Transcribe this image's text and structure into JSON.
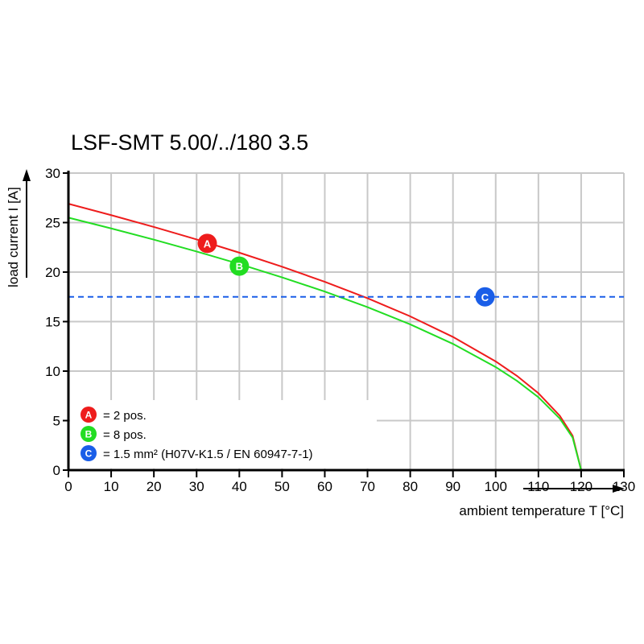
{
  "chart_data": {
    "type": "line",
    "title": "LSF-SMT 5.00/../180 3.5",
    "xlabel": "ambient temperature T [°C]",
    "ylabel": "load current I [A]",
    "xlim": [
      0,
      130
    ],
    "ylim": [
      0,
      30
    ],
    "xticks": [
      0,
      10,
      20,
      30,
      40,
      50,
      60,
      70,
      80,
      90,
      100,
      110,
      120,
      130
    ],
    "yticks": [
      0,
      5,
      10,
      15,
      20,
      25,
      30
    ],
    "grid": true,
    "legend_placement": "bottom-left",
    "series": [
      {
        "key": "A",
        "legend": "= 2 pos.",
        "color": "#ee1c1c",
        "x": [
          0,
          10,
          20,
          30,
          40,
          50,
          60,
          70,
          80,
          90,
          100,
          105,
          110,
          115,
          118,
          120
        ],
        "y": [
          26.9,
          25.75,
          24.56,
          23.3,
          21.96,
          20.54,
          19.02,
          17.36,
          15.53,
          13.45,
          10.98,
          9.51,
          7.77,
          5.49,
          3.47,
          0
        ],
        "marker": {
          "x": 32.5,
          "y": 22.9
        }
      },
      {
        "key": "B",
        "legend": "= 8 pos.",
        "color": "#22dd22",
        "x": [
          0,
          10,
          20,
          30,
          40,
          50,
          60,
          70,
          80,
          90,
          100,
          105,
          110,
          115,
          118,
          120
        ],
        "y": [
          25.5,
          24.41,
          23.28,
          22.08,
          20.82,
          19.47,
          18.03,
          16.46,
          14.72,
          12.75,
          10.41,
          9.01,
          7.36,
          5.21,
          3.29,
          0
        ],
        "marker": {
          "x": 40,
          "y": 20.6
        }
      },
      {
        "key": "C",
        "legend": "= 1.5 mm² (H07V-K1.5 / EN 60947-7-1)",
        "color": "#1a5ee8",
        "style": "dashed",
        "x": [
          0,
          130
        ],
        "y": [
          17.5,
          17.5
        ],
        "marker": {
          "x": 97.5,
          "y": 17.5
        }
      }
    ]
  }
}
